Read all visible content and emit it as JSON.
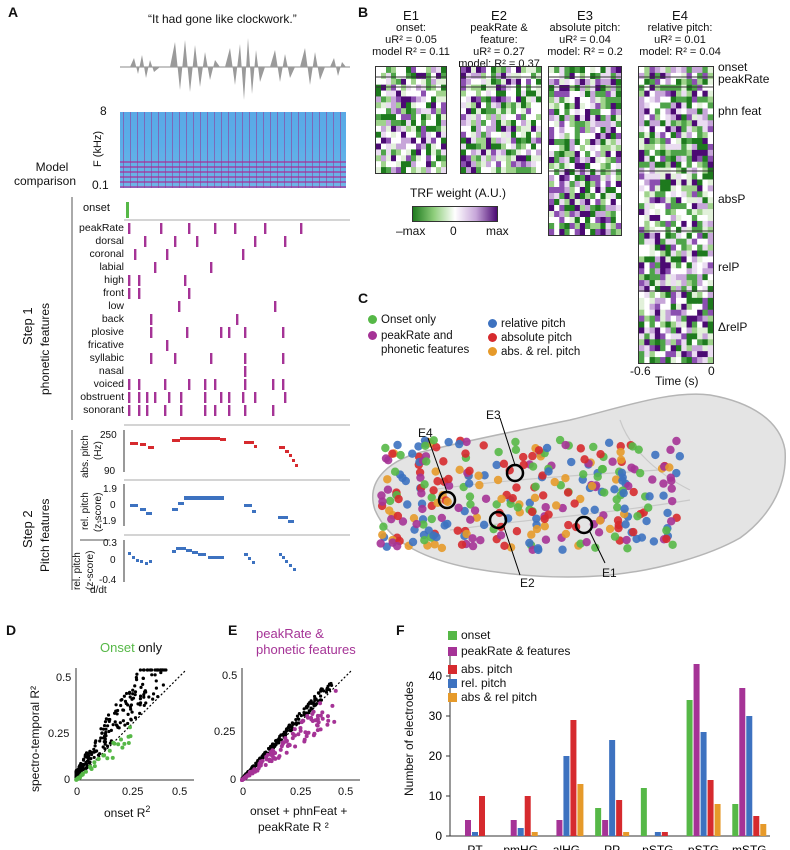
{
  "panels": {
    "A": "A",
    "B": "B",
    "C": "C",
    "D": "D",
    "E": "E",
    "F": "F"
  },
  "panelA": {
    "quote": "“It had gone like clockwork.”",
    "spec_ylabel": "F (kHz)",
    "spec_ticks": [
      "8",
      "0.1"
    ],
    "model_comparison": [
      "Model",
      "comparison"
    ],
    "onset_label": "onset",
    "step1": "Step 1",
    "phonetic_features": "phonetic features",
    "features": [
      "peakRate",
      "dorsal",
      "coronal",
      "labial",
      "high",
      "front",
      "low",
      "back",
      "plosive",
      "fricative",
      "syllabic",
      "nasal",
      "voiced",
      "obstruent",
      "sonorant"
    ],
    "step2": "Step 2",
    "pitch_features": "Pitch features",
    "abs_pitch_label": [
      "abs. pitch",
      "(Hz)"
    ],
    "abs_ticks": [
      "250",
      "90"
    ],
    "rel_pitch_label": [
      "rel. pitch",
      "(z-score)"
    ],
    "rel_ticks": [
      "1.9",
      "0",
      "-1.9"
    ],
    "d_dt": "d/dt",
    "drel_label": [
      "rel. pitch",
      "(z-score)"
    ],
    "drel_ticks": [
      "0.3",
      "0",
      "-0.4"
    ]
  },
  "panelB": {
    "electrodes": [
      {
        "name": "E1",
        "sub": "onset:",
        "u": "uR² = 0.05",
        "m": "model R² = 0.11"
      },
      {
        "name": "E2",
        "sub": "peakRate & feature:",
        "u": "uR² = 0.27",
        "m": "model: R² = 0.37"
      },
      {
        "name": "E3",
        "sub": "absolute pitch:",
        "u": "uR² = 0.04",
        "m": "model: R² = 0.2"
      },
      {
        "name": "E4",
        "sub": "relative pitch:",
        "u": "uR² = 0.01",
        "m": "model: R² = 0.04"
      }
    ],
    "row_labels": [
      "onset",
      "peakRate",
      "phn feat",
      "absP",
      "relP",
      "ΔrelP"
    ],
    "trf_title": "TRF weight (A.U.)",
    "cbar_ticks": [
      "–max",
      "0",
      "max"
    ],
    "time_ticks": [
      "-0.6",
      "0"
    ],
    "time_label": "Time (s)"
  },
  "panelC": {
    "legend": [
      {
        "label": "Onset only",
        "color": "#56b847"
      },
      {
        "label": "peakRate and",
        "label2": "phonetic features",
        "color": "#a53396"
      },
      {
        "label": "relative pitch",
        "color": "#3d72c0"
      },
      {
        "label": "absolute pitch",
        "color": "#d62a2e"
      },
      {
        "label": "abs. & rel. pitch",
        "color": "#e69a2a"
      }
    ],
    "electrode_labels": [
      "E4",
      "E3",
      "E2",
      "E1"
    ]
  },
  "panelD": {
    "title_green": "Onset",
    "title_rest": " only",
    "ylabel": "spectro-temporal  R²",
    "xlabel": "onset R",
    "xlabel_sup": "2",
    "xticks": [
      "0",
      "0.25",
      "0.5"
    ],
    "yticks": [
      "0.5",
      "0.25",
      "0"
    ]
  },
  "panelE": {
    "title": [
      "peakRate &",
      "phonetic features"
    ],
    "xlabel": [
      "onset + phnFeat +",
      "peakRate R ²"
    ],
    "xticks": [
      "0",
      "0.25",
      "0.5"
    ],
    "yticks": [
      "0.5",
      "0.25",
      "0"
    ]
  },
  "panelF": {
    "ylabel": "Number of electrodes",
    "yticks": [
      "40",
      "30",
      "20",
      "10",
      "0"
    ],
    "legend": [
      {
        "label": "onset",
        "color": "#56b847"
      },
      {
        "label": "peakRate & features",
        "color": "#a53396"
      },
      {
        "label": "abs. pitch",
        "color": "#d62a2e"
      },
      {
        "label": "rel. pitch",
        "color": "#3d72c0"
      },
      {
        "label": "abs & rel pitch",
        "color": "#e69a2a"
      }
    ]
  },
  "chart_data": [
    {
      "type": "bar",
      "ylabel": "Number of electrodes",
      "ylim": [
        0,
        45
      ],
      "categories": [
        "PT",
        "pmHG",
        "alHG",
        "PP",
        "pSTG onset",
        "pSTG -other",
        "mSTG"
      ],
      "series": [
        {
          "name": "onset",
          "color": "#56b847",
          "values": [
            0,
            0,
            0,
            7,
            12,
            34,
            8
          ]
        },
        {
          "name": "peakRate & features",
          "color": "#a53396",
          "values": [
            4,
            4,
            4,
            4,
            0,
            43,
            37
          ]
        },
        {
          "name": "rel. pitch",
          "color": "#3d72c0",
          "values": [
            1,
            2,
            20,
            24,
            1,
            26,
            30
          ]
        },
        {
          "name": "abs. pitch",
          "color": "#d62a2e",
          "values": [
            10,
            10,
            29,
            9,
            1,
            14,
            5
          ]
        },
        {
          "name": "abs & rel pitch",
          "color": "#e69a2a",
          "values": [
            0,
            1,
            13,
            1,
            0,
            8,
            3
          ]
        }
      ]
    }
  ]
}
